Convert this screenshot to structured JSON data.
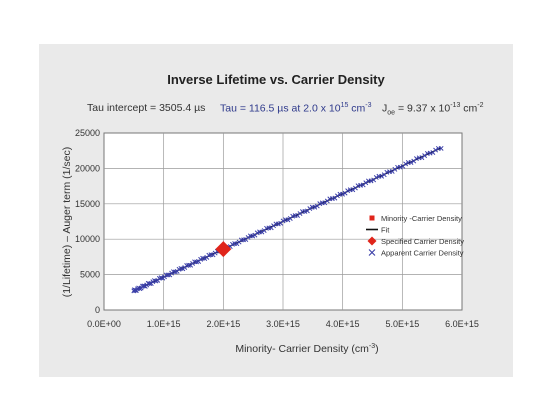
{
  "chart_data": {
    "type": "scatter",
    "title": "Inverse Lifetime vs. Carrier Density",
    "annotations": {
      "tau_intercept": "Tau intercept = 3505.4 µs",
      "tau_main": "Tau = 116.5 µs at 2.0 x 10",
      "tau_exp": "15",
      "tau_unit": " cm",
      "tau_unit_exp": "-3",
      "joe_main": "J",
      "joe_sub": "oe",
      "joe_val": " = 9.37 x 10",
      "joe_exp": "-13",
      "joe_unit": " cm",
      "joe_unit_exp": "-2"
    },
    "xlabel": "Minority- Carrier Density (cm",
    "xlabel_exp": "-3",
    "xlabel_close": ")",
    "ylabel": "(1/Lifetime) – Auger term (1/sec)",
    "xlim": [
      0,
      6000000000000000.0
    ],
    "ylim": [
      0,
      25000
    ],
    "x_ticks": [
      0,
      1000000000000000.0,
      2000000000000000.0,
      3000000000000000.0,
      4000000000000000.0,
      5000000000000000.0,
      6000000000000000.0
    ],
    "x_tick_labels": [
      "0.0E+00",
      "1.0E+15",
      "2.0E+15",
      "3.0E+15",
      "4.0E+15",
      "5.0E+15",
      "6.0E+15"
    ],
    "y_ticks": [
      0,
      5000,
      10000,
      15000,
      20000,
      25000
    ],
    "y_tick_labels": [
      "0",
      "5000",
      "10000",
      "15000",
      "20000",
      "25000"
    ],
    "grid": true,
    "legend_position": "right",
    "series": [
      {
        "name": "Minority -Carrier Density",
        "marker": "square",
        "color": "#e0251b",
        "points": []
      },
      {
        "name": "Fit",
        "marker": "line",
        "color": "#111111",
        "x": [
          500000000000000.0,
          5650000000000000.0
        ],
        "y": [
          2700,
          22900
        ]
      },
      {
        "name": "Specified Carrier Density",
        "marker": "diamond",
        "color": "#e0251b",
        "points": [
          [
            2000000000000000.0,
            8600
          ]
        ]
      },
      {
        "name": "Apparent Carrier Density",
        "marker": "x",
        "color": "#3b3fa8",
        "x_range": [
          500000000000000.0,
          5650000000000000.0
        ],
        "n_points": 140
      }
    ]
  }
}
